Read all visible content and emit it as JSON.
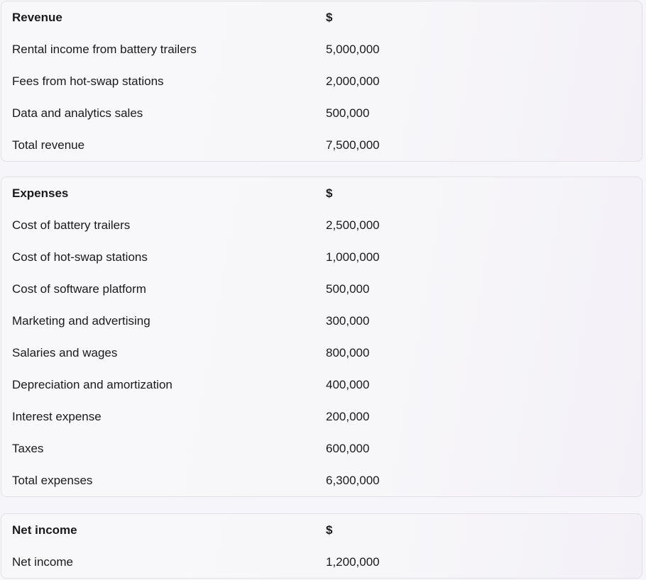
{
  "sections": [
    {
      "header": {
        "label": "Revenue",
        "currency": "$"
      },
      "rows": [
        {
          "label": "Rental income from battery trailers",
          "value": "5,000,000"
        },
        {
          "label": "Fees from hot-swap stations",
          "value": "2,000,000"
        },
        {
          "label": "Data and analytics sales",
          "value": "500,000"
        },
        {
          "label": "Total revenue",
          "value": "7,500,000"
        }
      ]
    },
    {
      "header": {
        "label": "Expenses",
        "currency": "$"
      },
      "rows": [
        {
          "label": "Cost of battery trailers",
          "value": "2,500,000"
        },
        {
          "label": "Cost of hot-swap stations",
          "value": "1,000,000"
        },
        {
          "label": "Cost of software platform",
          "value": "500,000"
        },
        {
          "label": "Marketing and advertising",
          "value": "300,000"
        },
        {
          "label": "Salaries and wages",
          "value": "800,000"
        },
        {
          "label": "Depreciation and amortization",
          "value": "400,000"
        },
        {
          "label": "Interest expense",
          "value": "200,000"
        },
        {
          "label": "Taxes",
          "value": "600,000"
        },
        {
          "label": "Total expenses",
          "value": "6,300,000"
        }
      ]
    },
    {
      "header": {
        "label": "Net income",
        "currency": "$"
      },
      "rows": [
        {
          "label": "Net income",
          "value": "1,200,000"
        }
      ]
    }
  ]
}
